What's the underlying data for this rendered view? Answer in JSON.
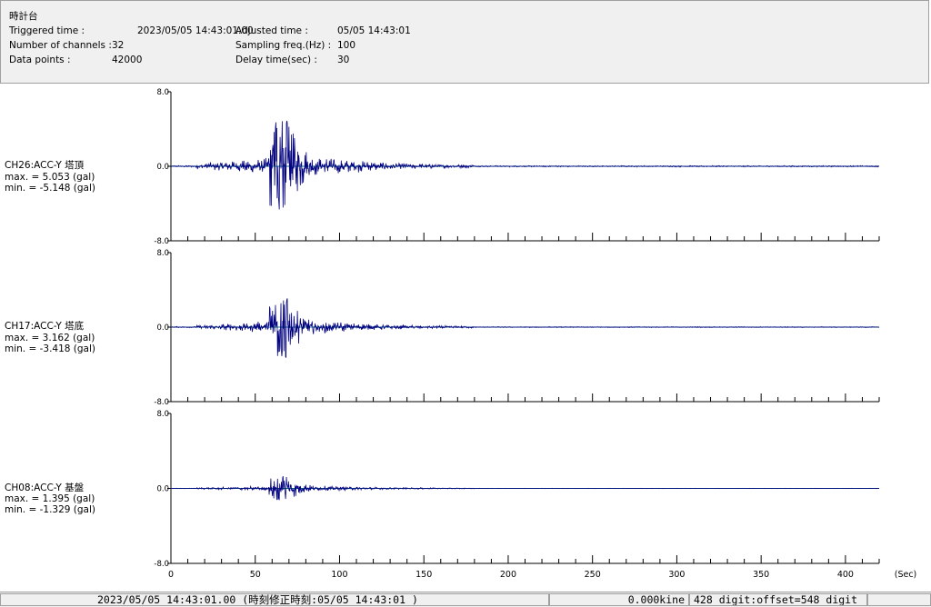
{
  "header": {
    "station": "時計台",
    "rows": [
      {
        "label": "Triggered time :",
        "value": "2023/05/05 14:43:01.00",
        "label2": "Adjusted time :",
        "value2": "05/05 14:43:01"
      },
      {
        "label": "Number of channels :",
        "value": "32",
        "label2": "Sampling freq.(Hz) :",
        "value2": "100"
      },
      {
        "label": "Data points :",
        "value": "42000",
        "label2": "Delay time(sec) :",
        "value2": "30"
      }
    ]
  },
  "channels": [
    {
      "name": "CH26:ACC-Y 塔頂",
      "max": "max. = 5.053 (gal)",
      "min": "min. = -5.148 (gal)",
      "amp": 5.1
    },
    {
      "name": "CH17:ACC-Y 塔底",
      "max": "max. = 3.162 (gal)",
      "min": "min. = -3.418 (gal)",
      "amp": 3.3
    },
    {
      "name": "CH08:ACC-Y 基盤",
      "max": "max. = 1.395 (gal)",
      "min": "min. = -1.329 (gal)",
      "amp": 1.35
    }
  ],
  "chart_data": {
    "type": "line",
    "x_unit": "(Sec)",
    "xlim": [
      0,
      420
    ],
    "x_ticks": [
      "0",
      "50",
      "100",
      "150",
      "200",
      "250",
      "300",
      "350",
      "400"
    ],
    "y_ticks": [
      "8.0",
      "0.0",
      "-8.0"
    ],
    "ylim": [
      -8,
      8
    ],
    "series_color": "#000080"
  },
  "status": {
    "time": "2023/05/05 14:43:01.00  (時刻修正時刻:05/05 14:43:01 )",
    "velocity": "0.000kine",
    "digit": "428 digit:offset=548 digit"
  }
}
